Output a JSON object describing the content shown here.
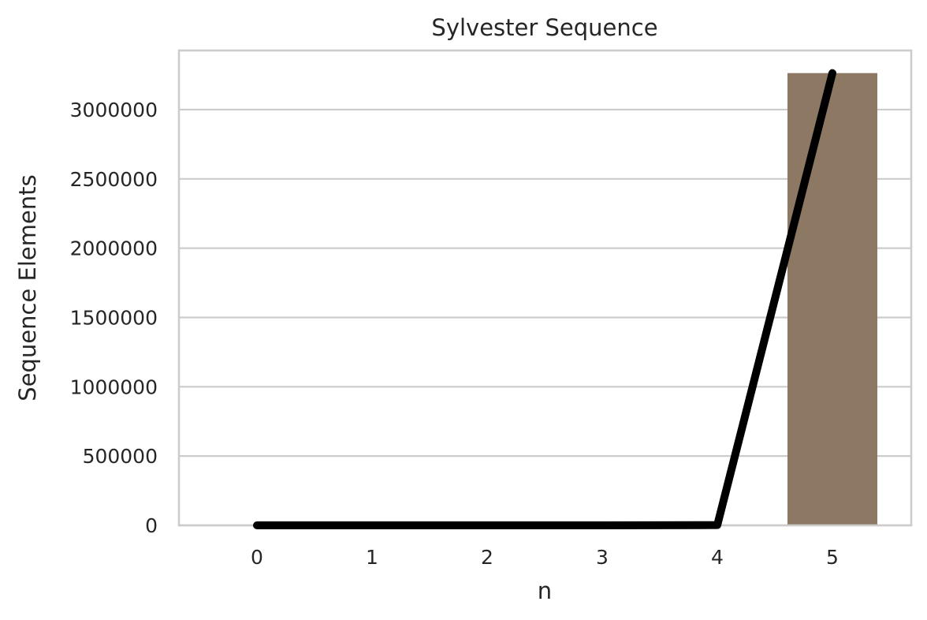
{
  "chart_data": {
    "type": "bar",
    "title": "Sylvester Sequence",
    "xlabel": "n",
    "ylabel": "Sequence Elements",
    "categories": [
      "0",
      "1",
      "2",
      "3",
      "4",
      "5"
    ],
    "series": [
      {
        "type": "bar",
        "values": [
          2,
          3,
          7,
          43,
          1807,
          3263443
        ]
      },
      {
        "type": "line",
        "values": [
          2,
          3,
          7,
          43,
          1807,
          3263443
        ]
      }
    ],
    "yticks": [
      0,
      500000,
      1000000,
      1500000,
      2000000,
      2500000,
      3000000
    ],
    "ytick_labels": [
      "0",
      "500000",
      "1000000",
      "1500000",
      "2000000",
      "2500000",
      "3000000"
    ],
    "ylim": [
      0,
      3426615
    ],
    "grid": "horizontal",
    "colors": {
      "bar": "#8c7863",
      "line": "#000000",
      "grid": "#cccccc",
      "text": "#262626"
    }
  }
}
